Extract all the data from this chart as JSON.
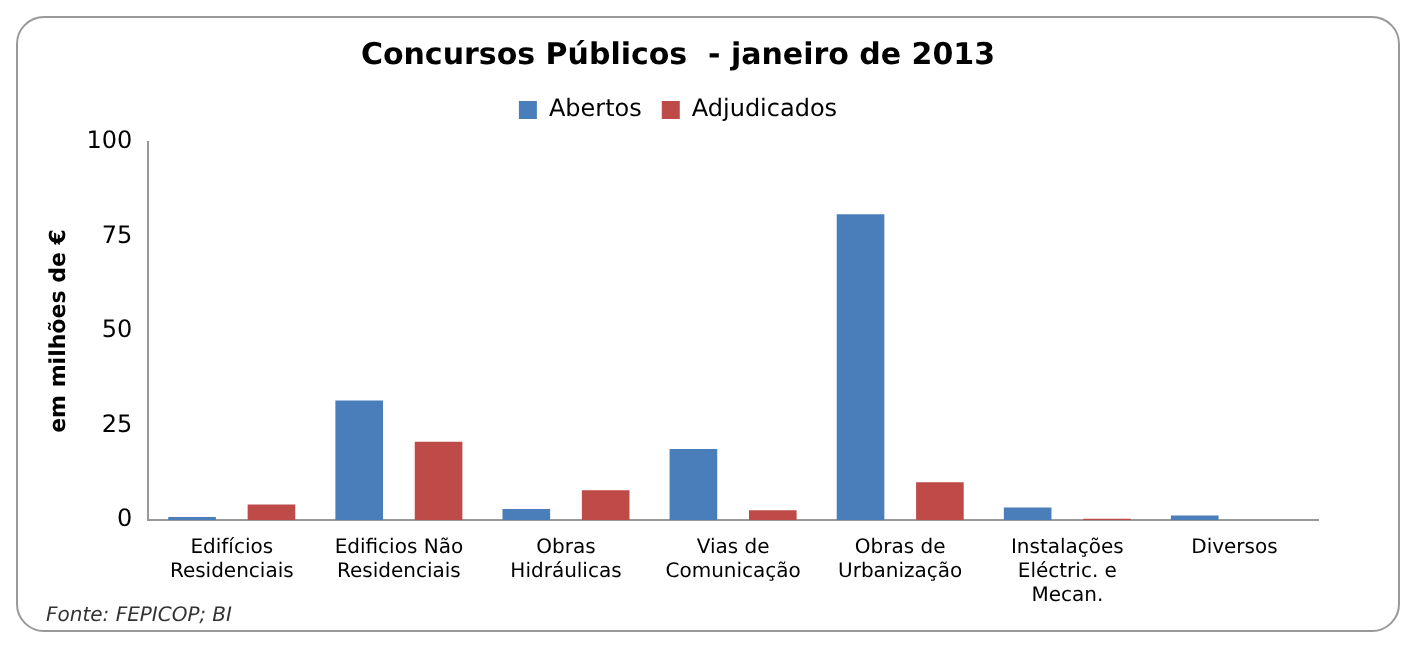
{
  "chart_data": {
    "type": "bar",
    "title": "Concursos Públicos  - janeiro de 2013",
    "ylabel": "em milhões de €",
    "categories": [
      "Edifícios\nResidenciais",
      "Edificios Não\nResidenciais",
      "Obras\nHidráulicas",
      "Vias de\nComunicação",
      "Obras de\nUrbanização",
      "Instalações\nEléctric. e\nMecan.",
      "Diversos"
    ],
    "series": [
      {
        "name": "Abertos",
        "color": "#4a7ebb",
        "values": [
          0.8,
          31.6,
          2.9,
          18.8,
          80.9,
          3.3,
          1.2
        ]
      },
      {
        "name": "Adjudicados",
        "color": "#be4b48",
        "values": [
          4.1,
          20.7,
          7.9,
          2.6,
          10,
          0.3,
          0
        ]
      }
    ],
    "ylim": [
      0,
      100
    ],
    "yticks": [
      0,
      25,
      50,
      75,
      100
    ],
    "grid": false,
    "legend": "top",
    "annotations": [
      "Fonte: FEPICOP; BI"
    ]
  }
}
